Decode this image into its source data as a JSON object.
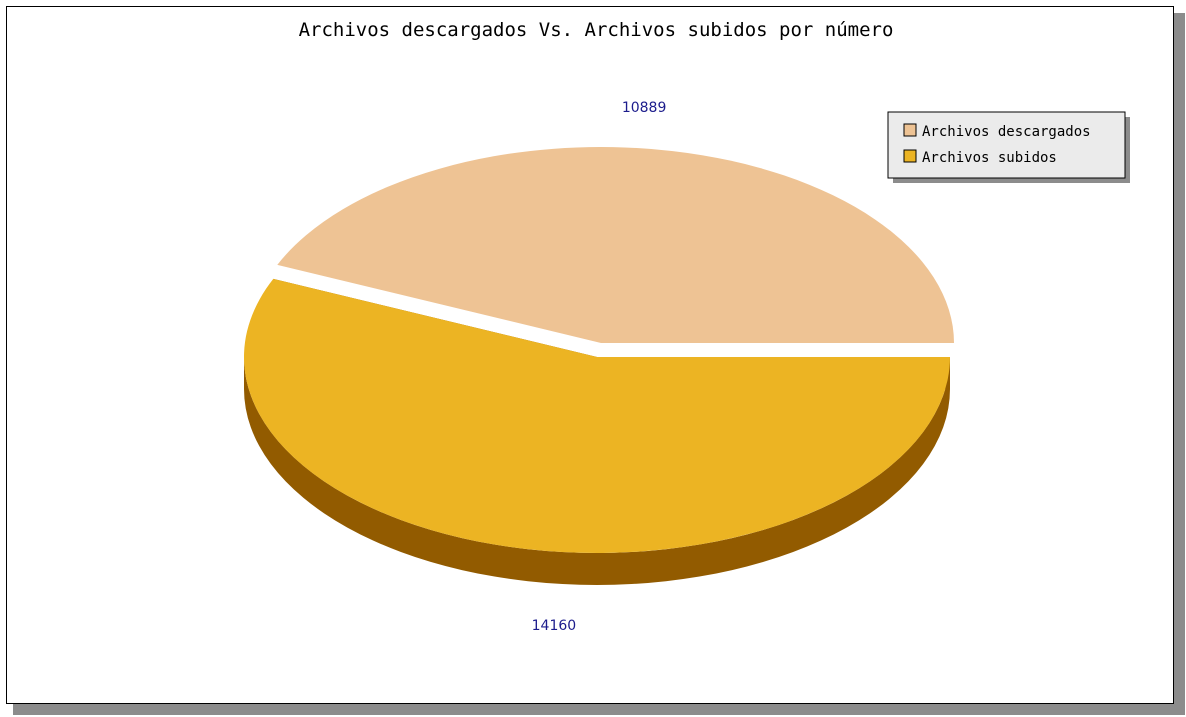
{
  "chart_data": {
    "type": "pie",
    "title": "Archivos descargados Vs. Archivos subidos por número",
    "three_d": true,
    "legend_position": "top-right",
    "categories": [
      "Archivos descargados",
      "Archivos subidos"
    ],
    "values": [
      10889,
      14160
    ],
    "value_labels": [
      "10889",
      "14160"
    ],
    "colors": {
      "top": [
        "#EEC394",
        "#ECB423"
      ],
      "side": [
        "#99693A",
        "#925B00"
      ],
      "value_label": "#1C1C8C",
      "legend_background": "#EBEBEB",
      "legend_shadow": "#8C8C8C"
    }
  }
}
